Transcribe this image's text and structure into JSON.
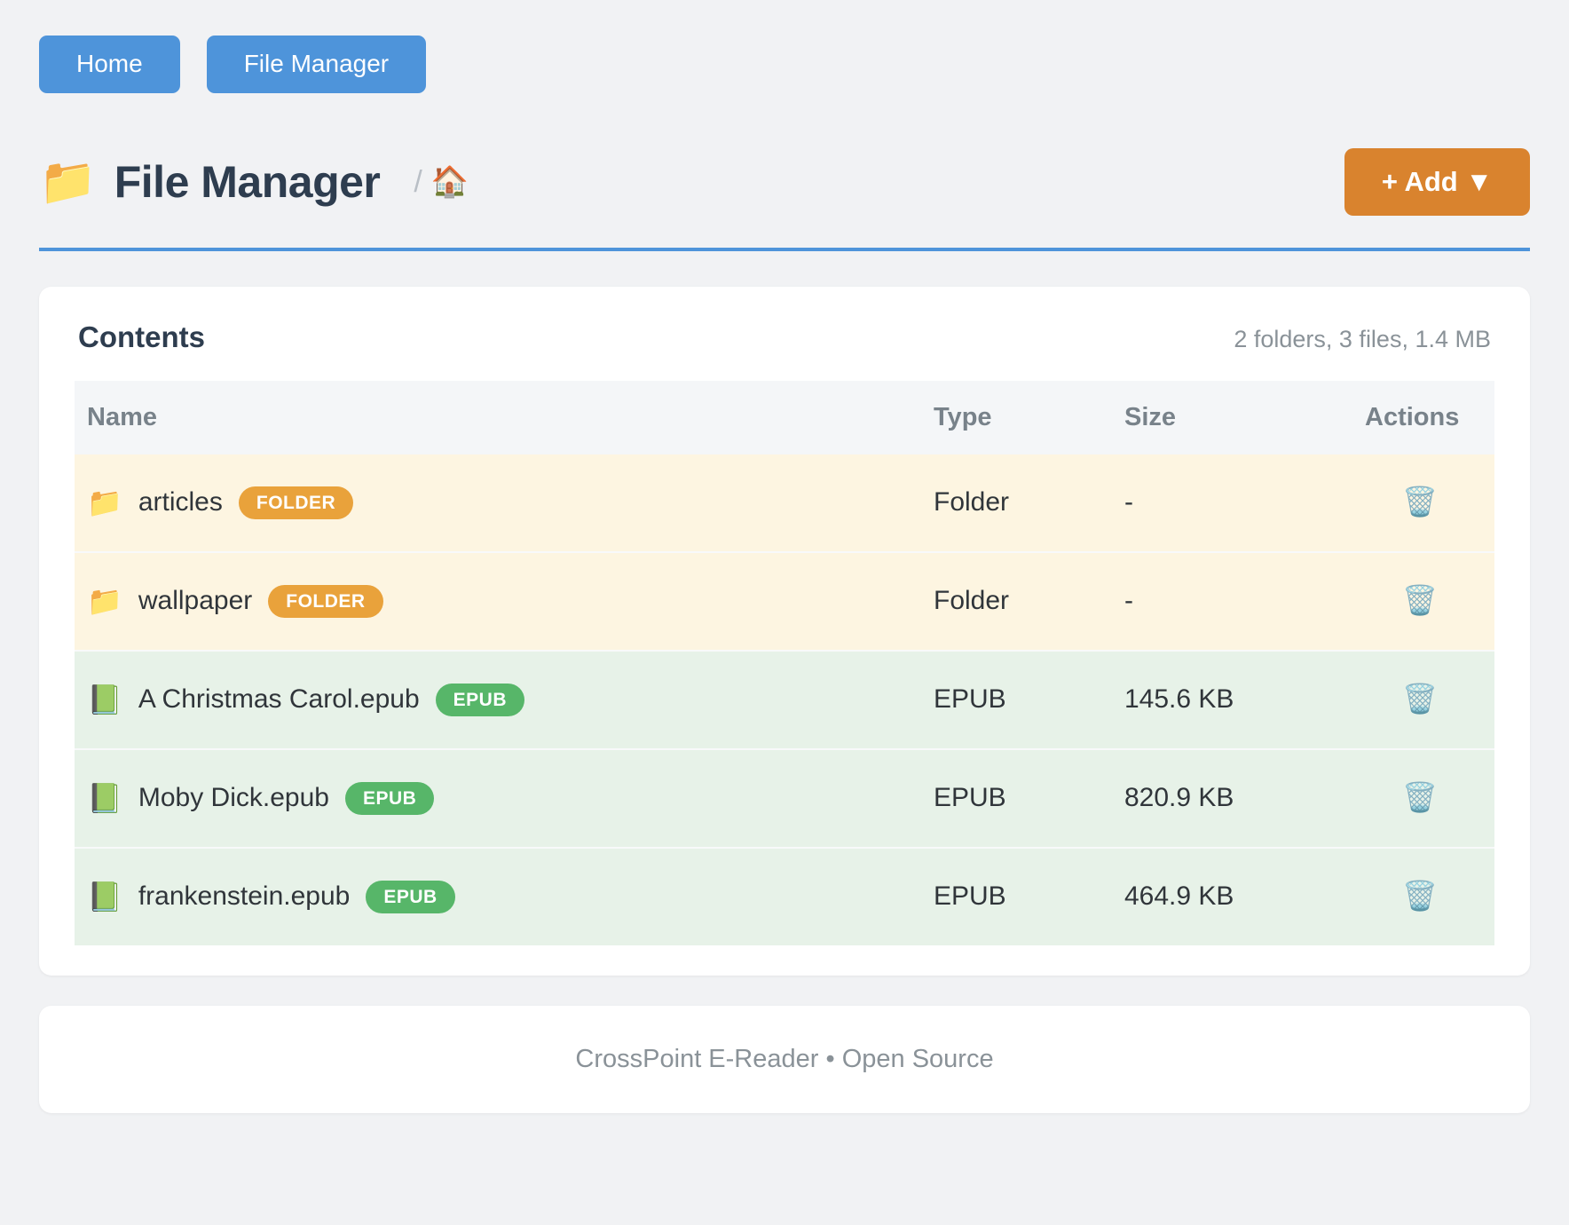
{
  "nav": {
    "buttons": [
      {
        "label": "Home"
      },
      {
        "label": "File Manager"
      }
    ]
  },
  "header": {
    "title_icon": "📁",
    "title": "File Manager",
    "breadcrumb": {
      "separator": "/",
      "home_icon": "🏠"
    },
    "add_button_label": "+ Add ▼"
  },
  "contents": {
    "title": "Contents",
    "summary": "2 folders, 3 files, 1.4 MB",
    "columns": [
      "Name",
      "Type",
      "Size",
      "Actions"
    ],
    "rows": [
      {
        "icon": "📁",
        "name": "articles",
        "badge": "FOLDER",
        "type": "Folder",
        "size": "-",
        "kind": "folder",
        "action_icon": "🗑️"
      },
      {
        "icon": "📁",
        "name": "wallpaper",
        "badge": "FOLDER",
        "type": "Folder",
        "size": "-",
        "kind": "folder",
        "action_icon": "🗑️"
      },
      {
        "icon": "📗",
        "name": "A Christmas Carol.epub",
        "badge": "EPUB",
        "type": "EPUB",
        "size": "145.6 KB",
        "kind": "epub",
        "action_icon": "🗑️"
      },
      {
        "icon": "📗",
        "name": "Moby Dick.epub",
        "badge": "EPUB",
        "type": "EPUB",
        "size": "820.9 KB",
        "kind": "epub",
        "action_icon": "🗑️"
      },
      {
        "icon": "📗",
        "name": "frankenstein.epub",
        "badge": "EPUB",
        "type": "EPUB",
        "size": "464.9 KB",
        "kind": "epub",
        "action_icon": "🗑️"
      }
    ]
  },
  "footer": {
    "text": "CrossPoint E-Reader • Open Source"
  },
  "colors": {
    "nav_button": "#4e94da",
    "divider": "#4e94da",
    "add_button": "#d9832e",
    "folder_row_bg": "#fdf5e1",
    "epub_row_bg": "#e7f2e8",
    "folder_badge": "#e9a23b",
    "epub_badge": "#57b669",
    "title_text": "#2e3d4f",
    "muted_text": "#8a9298"
  }
}
